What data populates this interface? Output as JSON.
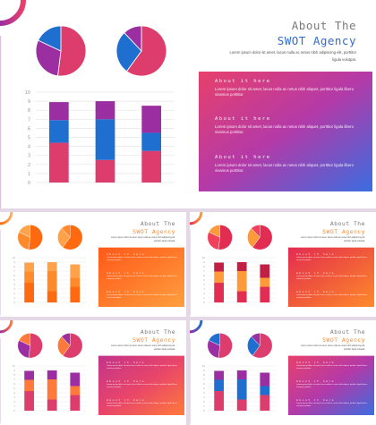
{
  "colors": {
    "blue": "#1f6fd1",
    "purple": "#9b2ea0",
    "pink": "#dc3d6c",
    "orange_dark": "#ff6a10",
    "orange_mid": "#ff8a2c",
    "orange_light": "#ffa24a",
    "red": "#e32c52"
  },
  "slides": [
    {
      "id": "main",
      "title_line1": "About The",
      "title_line2": "SWOT Agency",
      "title_line2_color": "#2f6dd0",
      "subtitle": "Lorem ipsum dolor sit amet, lacus nulla ac netus nibh adipiscing elit, porttitor ligula volutpat.",
      "panel_gradient": [
        "#e8406b",
        "#b43aa8",
        "#3a6de0"
      ],
      "sections": [
        {
          "heading": "About it here",
          "body": "Lorem ipsum dolor sit amet, lacus nulla ac netus nibh aliquet, porttitor ligula libero vivamus porttitor."
        },
        {
          "heading": "About it here",
          "body": "Lorem ipsum dolor sit amet, lacus nulla ac netus nibh aliquet, porttitor ligula libero vivamus porttitor."
        },
        {
          "heading": "About it here",
          "body": "Lorem ipsum dolor sit amet, lacus nulla ac netus nibh aliquet, porttitor ligula libero vivamus porttitor."
        }
      ],
      "corner": [
        "#9b2ea0",
        "#e8406b"
      ],
      "pies": [
        {
          "values": [
            52,
            30,
            18
          ],
          "colors": [
            "#dc3d6c",
            "#9b2ea0",
            "#1f6fd1"
          ]
        },
        {
          "values": [
            60,
            28,
            12
          ],
          "colors": [
            "#dc3d6c",
            "#1f6fd1",
            "#9b2ea0"
          ]
        }
      ],
      "bar_colors": [
        "#dc3d6c",
        "#1f6fd1",
        "#9b2ea0"
      ]
    },
    {
      "id": "orange",
      "title_line1": "About The",
      "title_line2": "SWOT Agency",
      "title_line2_color": "#ff8a2c",
      "subtitle": "Lorem ipsum dolor sit amet, lacus nulla ac netus nibh adipiscing elit, porttitor ligula volutpat.",
      "panel_gradient": [
        "#ff5a1a",
        "#ff7a2a",
        "#ffa040"
      ],
      "sections": [
        {
          "heading": "About it here",
          "body": "Lorem ipsum dolor sit amet, lacus nulla ac netus nibh aliquet, porttitor ligula libero vivamus porttitor."
        },
        {
          "heading": "About it here",
          "body": "Lorem ipsum dolor sit amet, lacus nulla ac netus nibh aliquet, porttitor ligula libero vivamus porttitor."
        },
        {
          "heading": "About it here",
          "body": "Lorem ipsum dolor sit amet, lacus nulla ac netus nibh aliquet, porttitor ligula libero vivamus porttitor."
        }
      ],
      "corner": [
        "#ff6a10",
        "#ffb060"
      ],
      "pies": [
        {
          "values": [
            52,
            30,
            18
          ],
          "colors": [
            "#ff6a10",
            "#ff8a2c",
            "#ffa24a"
          ]
        },
        {
          "values": [
            60,
            28,
            12
          ],
          "colors": [
            "#ff6a10",
            "#ffa24a",
            "#ff8a2c"
          ]
        }
      ],
      "bar_colors": [
        "#ff6a10",
        "#ff8a2c",
        "#ffa24a"
      ]
    },
    {
      "id": "red",
      "title_line1": "About The",
      "title_line2": "SWOT Agency",
      "title_line2_color": "#ff8a2c",
      "subtitle": "Lorem ipsum dolor sit amet, lacus nulla ac netus nibh adipiscing elit, porttitor ligula volutpat.",
      "panel_gradient": [
        "#e32c52",
        "#f05a3a",
        "#ff8a2c"
      ],
      "sections": [
        {
          "heading": "About it here",
          "body": "Lorem ipsum dolor sit amet, lacus nulla ac netus nibh aliquet, porttitor ligula libero vivamus porttitor."
        },
        {
          "heading": "About it here",
          "body": "Lorem ipsum dolor sit amet, lacus nulla ac netus nibh aliquet, porttitor ligula libero vivamus porttitor."
        },
        {
          "heading": "About it here",
          "body": "Lorem ipsum dolor sit amet, lacus nulla ac netus nibh aliquet, porttitor ligula libero vivamus porttitor."
        }
      ],
      "corner": [
        "#e32c52",
        "#ff9a3a"
      ],
      "pies": [
        {
          "values": [
            52,
            30,
            18
          ],
          "colors": [
            "#e32c52",
            "#f0405a",
            "#ff9a3a"
          ]
        },
        {
          "values": [
            60,
            28,
            12
          ],
          "colors": [
            "#e32c52",
            "#ff9a3a",
            "#f0405a"
          ]
        }
      ],
      "bar_colors": [
        "#e32c52",
        "#ff9a3a",
        "#c21f45"
      ]
    },
    {
      "id": "purple-orange",
      "title_line1": "About The",
      "title_line2": "SWOT Agency",
      "title_line2_color": "#ff8a2c",
      "subtitle": "Lorem ipsum dolor sit amet, lacus nulla ac netus nibh adipiscing elit, porttitor ligula volutpat.",
      "panel_gradient": [
        "#c2348a",
        "#e8456a",
        "#ff7a3a"
      ],
      "sections": [
        {
          "heading": "About it here",
          "body": "Lorem ipsum dolor sit amet, lacus nulla ac netus nibh aliquet, porttitor ligula libero vivamus porttitor."
        },
        {
          "heading": "About it here",
          "body": "Lorem ipsum dolor sit amet, lacus nulla ac netus nibh aliquet, porttitor ligula libero vivamus porttitor."
        },
        {
          "heading": "About it here",
          "body": "Lorem ipsum dolor sit amet, lacus nulla ac netus nibh aliquet, porttitor ligula libero vivamus porttitor."
        }
      ],
      "corner": [
        "#9b2ea0",
        "#ff7a3a"
      ],
      "pies": [
        {
          "values": [
            52,
            30,
            18
          ],
          "colors": [
            "#dc3d6c",
            "#9b2ea0",
            "#ff7a3a"
          ]
        },
        {
          "values": [
            60,
            28,
            12
          ],
          "colors": [
            "#dc3d6c",
            "#ff7a3a",
            "#9b2ea0"
          ]
        }
      ],
      "bar_colors": [
        "#dc3d6c",
        "#ff7a3a",
        "#9b2ea0"
      ]
    },
    {
      "id": "blue-purple",
      "title_line1": "About The",
      "title_line2": "SWOT Agency",
      "title_line2_color": "#ff8a2c",
      "subtitle": "Lorem ipsum dolor sit amet, lacus nulla ac netus nibh adipiscing elit, porttitor ligula volutpat.",
      "panel_gradient": [
        "#e8406b",
        "#b43aa8",
        "#3a6de0"
      ],
      "sections": [
        {
          "heading": "About it here",
          "body": "Lorem ipsum dolor sit amet, lacus nulla ac netus nibh aliquet, porttitor ligula libero vivamus porttitor."
        },
        {
          "heading": "About it here",
          "body": "Lorem ipsum dolor sit amet, lacus nulla ac netus nibh aliquet, porttitor ligula libero vivamus porttitor."
        },
        {
          "heading": "About it here",
          "body": "Lorem ipsum dolor sit amet, lacus nulla ac netus nibh aliquet, porttitor ligula libero vivamus porttitor."
        }
      ],
      "corner": [
        "#9b2ea0",
        "#1f6fd1"
      ],
      "pies": [
        {
          "values": [
            52,
            30,
            18
          ],
          "colors": [
            "#dc3d6c",
            "#9b2ea0",
            "#1f6fd1"
          ]
        },
        {
          "values": [
            60,
            28,
            12
          ],
          "colors": [
            "#dc3d6c",
            "#1f6fd1",
            "#9b2ea0"
          ]
        }
      ],
      "bar_colors": [
        "#dc3d6c",
        "#1f6fd1",
        "#9b2ea0"
      ]
    }
  ],
  "chart_data": [
    {
      "type": "pie",
      "values": [
        52,
        30,
        18
      ]
    },
    {
      "type": "pie",
      "values": [
        60,
        28,
        12
      ]
    },
    {
      "type": "bar",
      "stacked": true,
      "categories": [
        "",
        "",
        ""
      ],
      "series": [
        {
          "values": [
            4.4,
            2.5,
            3.5
          ]
        },
        {
          "values": [
            2.5,
            4.5,
            2.0
          ]
        },
        {
          "values": [
            2.0,
            2.0,
            3.0
          ]
        }
      ],
      "ylim": [
        0,
        10
      ],
      "yticks": [
        "0",
        "1",
        "2",
        "3",
        "4",
        "5",
        "6",
        "7",
        "8",
        "9",
        "10"
      ],
      "grid": true
    }
  ]
}
